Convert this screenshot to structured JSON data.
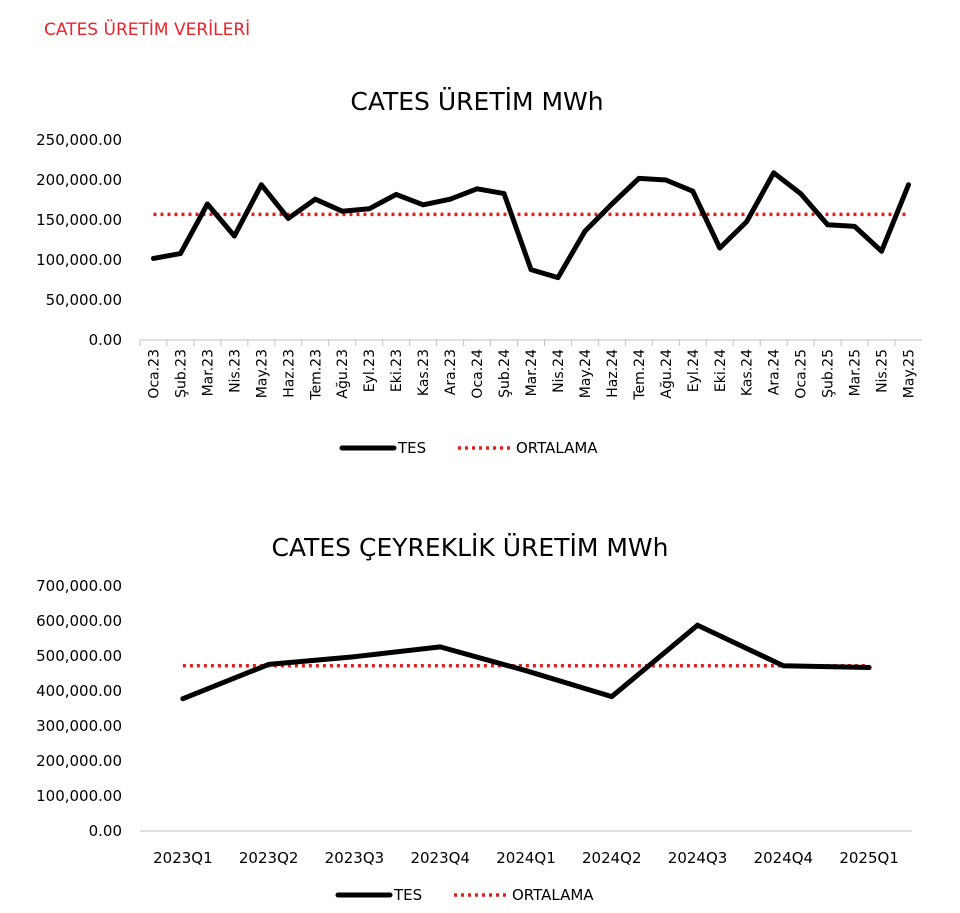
{
  "header": {
    "title": "CATES ÜRETİM VERİLERİ"
  },
  "colors": {
    "header": "#e8242b",
    "tes": "#000000",
    "ortalama": "#e02020",
    "axis": "#bfbfbf"
  },
  "chart_data": [
    {
      "type": "line",
      "title": "CATES ÜRETİM MWh",
      "xlabel": "",
      "ylabel": "",
      "ylim": [
        0,
        250000
      ],
      "ytick_labels": [
        "0.00",
        "50,000.00",
        "100,000.00",
        "150,000.00",
        "200,000.00",
        "250,000.00"
      ],
      "categories": [
        "Oca.23",
        "Şub.23",
        "Mar.23",
        "Nis.23",
        "May.23",
        "Haz.23",
        "Tem.23",
        "Ağu.23",
        "Eyl.23",
        "Eki.23",
        "Kas.23",
        "Ara.23",
        "Oca.24",
        "Şub.24",
        "Mar.24",
        "Nis.24",
        "May.24",
        "Haz.24",
        "Tem.24",
        "Ağu.24",
        "Eyl.24",
        "Eki.24",
        "Kas.24",
        "Ara.24",
        "Oca.25",
        "Şub.25",
        "Mar.25",
        "Nis.25",
        "May.25"
      ],
      "series": [
        {
          "name": "TES",
          "values": [
            102000,
            108000,
            170000,
            130000,
            194000,
            152000,
            176000,
            161000,
            164000,
            182000,
            169000,
            176000,
            189000,
            183000,
            88000,
            78000,
            136000,
            170000,
            202000,
            200000,
            186000,
            115000,
            148000,
            209000,
            183000,
            144000,
            142000,
            111000,
            194000
          ]
        },
        {
          "name": "ORTALAMA",
          "values": [
            157000,
            157000,
            157000,
            157000,
            157000,
            157000,
            157000,
            157000,
            157000,
            157000,
            157000,
            157000,
            157000,
            157000,
            157000,
            157000,
            157000,
            157000,
            157000,
            157000,
            157000,
            157000,
            157000,
            157000,
            157000,
            157000,
            157000,
            157000,
            157000
          ]
        }
      ],
      "legend": "bottom"
    },
    {
      "type": "line",
      "title": "CATES ÇEYREKLİK ÜRETİM MWh",
      "xlabel": "",
      "ylabel": "",
      "ylim": [
        0,
        700000
      ],
      "ytick_labels": [
        "0.00",
        "100,000.00",
        "200,000.00",
        "300,000.00",
        "400,000.00",
        "500,000.00",
        "600,000.00",
        "700,000.00"
      ],
      "categories": [
        "2023Q1",
        "2023Q2",
        "2023Q3",
        "2023Q4",
        "2024Q1",
        "2024Q2",
        "2024Q3",
        "2024Q4",
        "2025Q1"
      ],
      "series": [
        {
          "name": "TES",
          "values": [
            378000,
            476000,
            498000,
            526000,
            458000,
            384000,
            588000,
            472000,
            467000
          ]
        },
        {
          "name": "ORTALAMA",
          "values": [
            472000,
            472000,
            472000,
            472000,
            472000,
            472000,
            472000,
            472000,
            472000
          ]
        }
      ],
      "legend": "bottom"
    }
  ]
}
